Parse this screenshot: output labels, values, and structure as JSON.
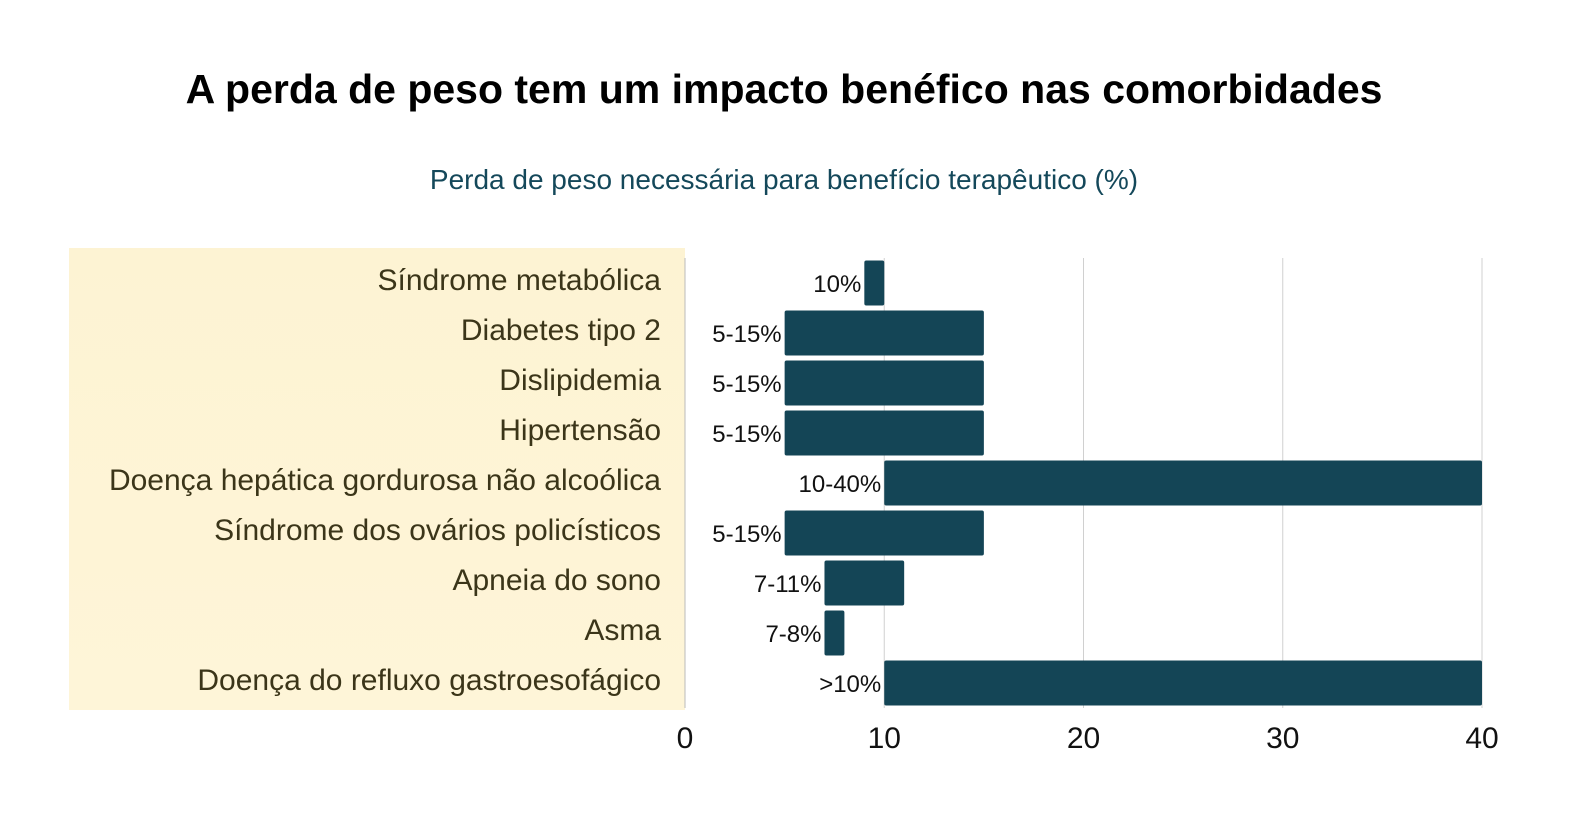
{
  "chart_data": {
    "type": "bar",
    "orientation": "horizontal",
    "title": "A perda de peso tem um impacto benéfico nas comorbidades",
    "subtitle": "Perda de peso necessária para benefício terapêutico (%)",
    "xlabel": "",
    "ylabel": "",
    "xlim": [
      0,
      40
    ],
    "xticks": [
      0,
      10,
      20,
      30,
      40
    ],
    "grid": true,
    "bar_color": "#144556",
    "label_panel_color": "#fef4d6",
    "categories": [
      "Síndrome metabólica",
      "Diabetes tipo 2",
      "Dislipidemia",
      "Hipertensão",
      "Doença hepática gordurosa não alcoólica",
      "Síndrome dos ovários policísticos",
      "Apneia do sono",
      "Asma",
      "Doença do refluxo gastroesofágico"
    ],
    "ranges": [
      [
        9,
        10
      ],
      [
        5,
        15
      ],
      [
        5,
        15
      ],
      [
        5,
        15
      ],
      [
        10,
        40
      ],
      [
        5,
        15
      ],
      [
        7,
        11
      ],
      [
        7,
        8
      ],
      [
        10,
        40
      ]
    ],
    "data_labels": [
      "10%",
      "5-15%",
      "5-15%",
      "5-15%",
      "10-40%",
      "5-15%",
      "7-11%",
      "7-8%",
      ">10%"
    ]
  }
}
